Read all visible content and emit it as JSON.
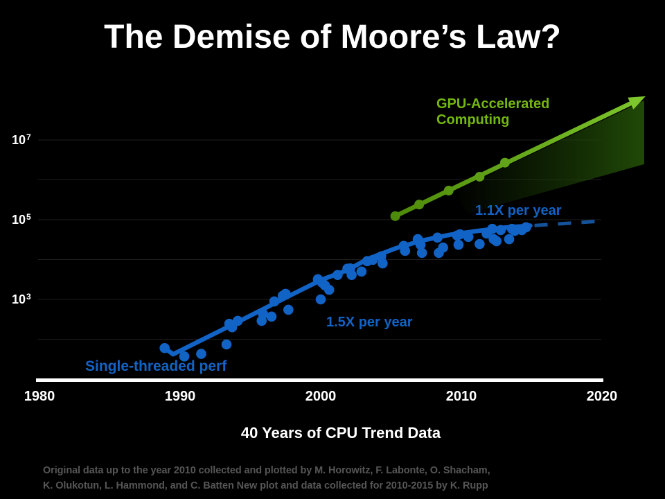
{
  "slide": {
    "title": "The Demise of Moore’s Law?"
  },
  "colors": {
    "background": "#000000",
    "title_text": "#ffffff",
    "axis_text": "#ffffff",
    "axis_line": "#ffffff",
    "gridline": "#1e1e1e",
    "blue": "#1263c6",
    "blue_dashed": "#15529c",
    "green_text": "#74b711",
    "green_bright": "#7dc62c",
    "green_dark": "#4e8a0a",
    "footer_text": "#565656"
  },
  "chart_data": {
    "type": "scatter",
    "title": "40 Years of CPU Trend Data",
    "x_axis": {
      "ticks": [
        1980,
        1990,
        2000,
        2010,
        2020
      ],
      "range": [
        1978,
        2023
      ]
    },
    "y_axis": {
      "scale": "log",
      "labels": [
        {
          "base": "10",
          "exp": "7",
          "value": 10000000
        },
        {
          "base": "10",
          "exp": "5",
          "value": 100000
        },
        {
          "base": "10",
          "exp": "3",
          "value": 1000
        }
      ],
      "gridline_exponents": [
        7,
        6,
        5,
        4,
        3,
        2
      ],
      "range_exponents": [
        1.5,
        8.2
      ]
    },
    "labels": {
      "gpu": "GPU-Accelerated Computing",
      "rate_high": "1.1X per year",
      "rate_low": "1.5X per year",
      "single_thread": "Single-threaded perf"
    },
    "series": [
      {
        "name": "Single-threaded perf",
        "type": "scatter",
        "color_key": "blue",
        "points": [
          [
            1988.9,
            60
          ],
          [
            1990.3,
            37
          ],
          [
            1991.5,
            43
          ],
          [
            1993.3,
            74
          ],
          [
            1993.5,
            245
          ],
          [
            1993.7,
            200
          ],
          [
            1994.1,
            290
          ],
          [
            1995.8,
            290
          ],
          [
            1995.9,
            430
          ],
          [
            1996.5,
            370
          ],
          [
            1996.7,
            890
          ],
          [
            1997.3,
            1230
          ],
          [
            1997.5,
            1380
          ],
          [
            1997.7,
            550
          ],
          [
            1999.8,
            3200
          ],
          [
            2000.0,
            1000
          ],
          [
            2000.1,
            2630
          ],
          [
            2000.3,
            2240
          ],
          [
            2000.6,
            1740
          ],
          [
            2001.2,
            4100
          ],
          [
            2001.9,
            5900
          ],
          [
            2002.1,
            6000
          ],
          [
            2002.2,
            4100
          ],
          [
            2002.9,
            5000
          ],
          [
            2003.3,
            9100
          ],
          [
            2003.7,
            9800
          ],
          [
            2004.3,
            12000
          ],
          [
            2004.4,
            8000
          ],
          [
            2005.9,
            22000
          ],
          [
            2006.0,
            16500
          ],
          [
            2006.9,
            32500
          ],
          [
            2007.1,
            23500
          ],
          [
            2007.2,
            14700
          ],
          [
            2008.3,
            35500
          ],
          [
            2008.4,
            14700
          ],
          [
            2008.7,
            20000
          ],
          [
            2009.7,
            40000
          ],
          [
            2009.8,
            23500
          ],
          [
            2009.9,
            43000
          ],
          [
            2010.5,
            37000
          ],
          [
            2011.3,
            24500
          ],
          [
            2011.8,
            45000
          ],
          [
            2012.2,
            59000
          ],
          [
            2012.3,
            32500
          ],
          [
            2012.5,
            29000
          ],
          [
            2012.8,
            55000
          ],
          [
            2013.4,
            32500
          ],
          [
            2013.6,
            59000
          ],
          [
            2013.8,
            52500
          ],
          [
            2014.3,
            55000
          ],
          [
            2014.6,
            64500
          ]
        ],
        "trend_solid": [
          [
            1988.9,
            60
          ],
          [
            1989.5,
            42
          ],
          [
            1994.0,
            260
          ],
          [
            1998.0,
            1350
          ],
          [
            2000.1,
            3160
          ],
          [
            2001.8,
            5250
          ],
          [
            2003.4,
            10500
          ],
          [
            2005.3,
            19000
          ],
          [
            2007.2,
            30000
          ],
          [
            2009.2,
            42000
          ],
          [
            2011.2,
            52500
          ],
          [
            2013.0,
            63000
          ],
          [
            2014.9,
            71000
          ]
        ],
        "trend_dashed": [
          [
            2015.2,
            71500
          ],
          [
            2020.0,
            92500
          ]
        ]
      },
      {
        "name": "GPU-Accelerated Computing",
        "type": "line",
        "color_start_key": "green_dark",
        "color_end_key": "green_bright",
        "points": [
          [
            2005.3,
            123000
          ],
          [
            2007.0,
            240000
          ],
          [
            2009.1,
            537000
          ],
          [
            2011.3,
            1200000
          ],
          [
            2013.1,
            2700000
          ]
        ],
        "arrow_end": [
          2023.1,
          125000000
        ]
      }
    ]
  },
  "footer": {
    "line1": "Original data up to the year 2010 collected and plotted by M. Horowitz, F. Labonte, O. Shacham,",
    "line2": "K. Olukotun, L. Hammond, and C. Batten New plot and data collected for 2010-2015 by K. Rupp"
  }
}
